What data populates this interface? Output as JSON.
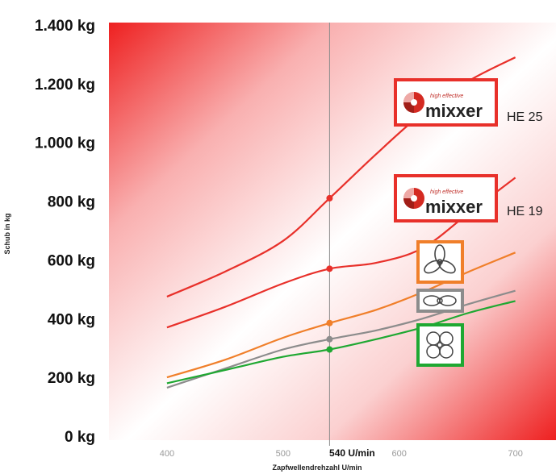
{
  "chart_data": {
    "type": "line",
    "ylabel": "Schub in kg",
    "xlabel": "Zapfwellendrehzahl U/min",
    "xlim": [
      350,
      735
    ],
    "ylim": [
      0,
      1400
    ],
    "yticks": [
      {
        "value": 0,
        "label": "0 kg"
      },
      {
        "value": 200,
        "label": "200 kg"
      },
      {
        "value": 400,
        "label": "400 kg"
      },
      {
        "value": 600,
        "label": "600 kg"
      },
      {
        "value": 800,
        "label": "800 kg"
      },
      {
        "value": 1000,
        "label": "1.000 kg"
      },
      {
        "value": 1200,
        "label": "1.200 kg"
      },
      {
        "value": 1400,
        "label": "1.400 kg"
      }
    ],
    "xticks": [
      {
        "value": 400,
        "label": "400",
        "bold": false
      },
      {
        "value": 500,
        "label": "500",
        "bold": false
      },
      {
        "value": 540,
        "label": "540 U/min",
        "bold": true
      },
      {
        "value": 600,
        "label": "600",
        "bold": false
      },
      {
        "value": 700,
        "label": "700",
        "bold": false
      }
    ],
    "reference_line_x": 540,
    "series": [
      {
        "id": "he25",
        "name": "HE 25",
        "color": "#e8302a",
        "x": [
          400,
          450,
          500,
          540,
          580,
          620,
          660,
          700
        ],
        "y": [
          475,
          560,
          665,
          810,
          960,
          1100,
          1210,
          1290
        ]
      },
      {
        "id": "he19",
        "name": "HE 19",
        "color": "#e8302a",
        "x": [
          400,
          450,
          500,
          540,
          580,
          620,
          660,
          700
        ],
        "y": [
          370,
          440,
          520,
          570,
          590,
          640,
          760,
          880
        ]
      },
      {
        "id": "orange",
        "color": "#f07f2a",
        "x": [
          400,
          450,
          500,
          540,
          580,
          620,
          660,
          700
        ],
        "y": [
          200,
          260,
          335,
          385,
          430,
          490,
          560,
          625
        ]
      },
      {
        "id": "grey",
        "color": "#8c8c8c",
        "x": [
          400,
          450,
          500,
          540,
          580,
          620,
          660,
          700
        ],
        "y": [
          165,
          230,
          295,
          330,
          360,
          400,
          450,
          495
        ]
      },
      {
        "id": "green",
        "color": "#1fa832",
        "x": [
          400,
          450,
          500,
          540,
          580,
          620,
          660,
          700
        ],
        "y": [
          180,
          225,
          270,
          295,
          330,
          370,
          420,
          460
        ]
      }
    ],
    "markers_at_540": [
      {
        "series": "he25",
        "y": 810
      },
      {
        "series": "he19",
        "y": 570
      },
      {
        "series": "orange",
        "y": 385
      },
      {
        "series": "grey",
        "y": 330
      },
      {
        "series": "green",
        "y": 295
      }
    ],
    "legend_labels": [
      {
        "series": "he25",
        "logo_small": "high effective",
        "logo_big": "mixxer",
        "text": "HE 25"
      },
      {
        "series": "he19",
        "logo_small": "high effective",
        "logo_big": "mixxer",
        "text": "HE 19"
      }
    ],
    "propeller_icons": [
      {
        "series": "orange",
        "border_color": "#f07f2a",
        "icon": "three-blade-propeller-icon"
      },
      {
        "series": "grey",
        "border_color": "#8c8c8c",
        "icon": "two-blade-propeller-icon"
      },
      {
        "series": "green",
        "border_color": "#1fa832",
        "icon": "four-blade-propeller-icon"
      }
    ],
    "background": "red gradient (top-left and bottom-right red, diagonal white band)",
    "grid": false
  }
}
